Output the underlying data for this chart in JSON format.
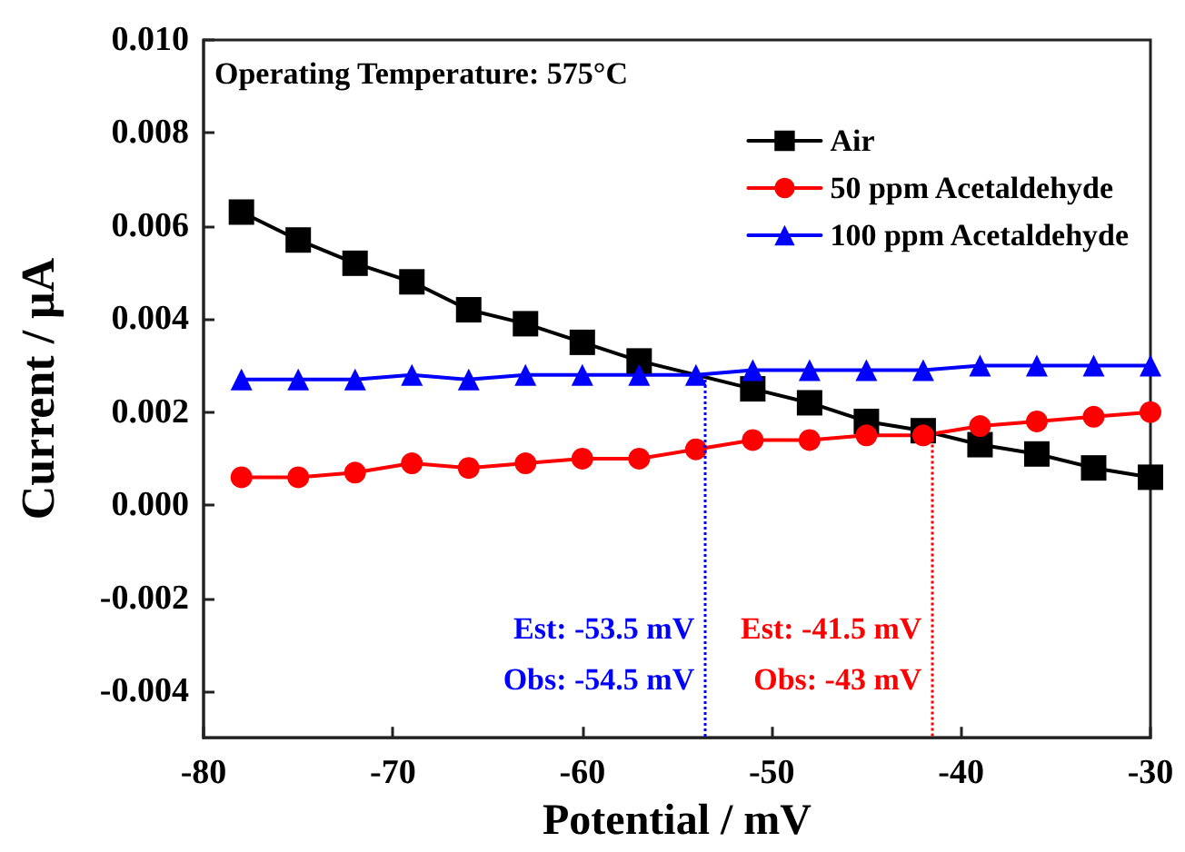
{
  "chart_data": {
    "type": "line",
    "xlabel": "Potential / mV",
    "ylabel": "Current / μA",
    "x": [
      -78,
      -75,
      -72,
      -69,
      -66,
      -63,
      -60,
      -57,
      -54,
      -51,
      -48,
      -45,
      -42,
      -39,
      -36,
      -33,
      -30
    ],
    "series": [
      {
        "name": "Air",
        "color": "#000000",
        "marker": "square",
        "values": [
          0.0063,
          0.0057,
          0.0052,
          0.0048,
          0.0042,
          0.0039,
          0.0035,
          0.0031,
          null,
          0.0025,
          0.0022,
          0.0018,
          0.0016,
          0.0013,
          0.0011,
          0.0008,
          0.0006
        ]
      },
      {
        "name": "50 ppm Acetaldehyde",
        "color": "#ff0000",
        "marker": "circle",
        "values": [
          0.0006,
          0.0006,
          0.0007,
          0.0009,
          0.0008,
          0.0009,
          0.001,
          0.001,
          0.0012,
          0.0014,
          0.0014,
          0.0015,
          0.0015,
          0.0017,
          0.0018,
          0.0019,
          0.002
        ]
      },
      {
        "name": "100 ppm Acetaldehyde",
        "color": "#0000ff",
        "marker": "triangle",
        "values": [
          0.0027,
          0.0027,
          0.0027,
          0.0028,
          0.0027,
          0.0028,
          0.0028,
          0.0028,
          0.0028,
          0.0029,
          0.0029,
          0.0029,
          0.0029,
          0.003,
          0.003,
          0.003,
          0.003
        ]
      }
    ],
    "xlim": [
      -80,
      -30
    ],
    "xticks": [
      -80,
      -70,
      -60,
      -50,
      -40,
      -30
    ],
    "ylim": [
      -0.005,
      0.01
    ],
    "yticks": [
      {
        "value": -0.004,
        "label": "-0.004"
      },
      {
        "value": -0.002,
        "label": "-0.002"
      },
      {
        "value": 0,
        "label": "0.000"
      },
      {
        "value": 0.002,
        "label": "0.002"
      },
      {
        "value": 0.004,
        "label": "0.004"
      },
      {
        "value": 0.006,
        "label": "0.006"
      },
      {
        "value": 0.008,
        "label": "0.008"
      },
      {
        "value": 0.01,
        "label": "0.010"
      }
    ],
    "ref_lines": [
      {
        "axis": "x",
        "value": -53.5,
        "label": "Est: -53.5 mV\nObs: -54.5 mV",
        "color": "#0000ff",
        "line_style": "dotted"
      },
      {
        "axis": "x",
        "value": -41.5,
        "label": "Est: -41.5 mV\nObs: -43 mV",
        "color": "#ff0000",
        "line_style": "dotted"
      }
    ],
    "annotations": [
      "Operating Temperature: 575°C"
    ],
    "legend": "top right",
    "grid": false,
    "line_style": "solid"
  }
}
